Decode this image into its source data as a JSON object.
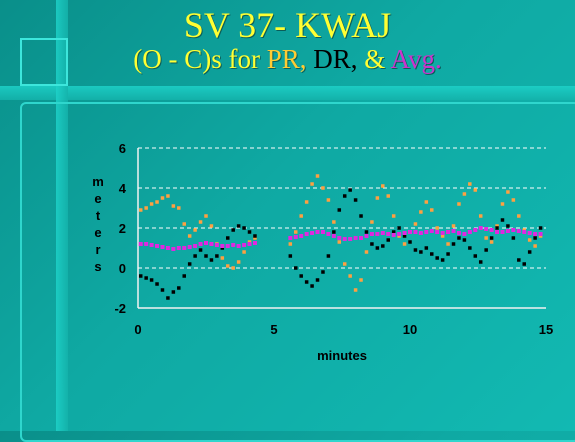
{
  "slide": {
    "title": "SV 37- KWAJ",
    "subtitle_pre": "(O - C)s for",
    "subtitle_pr": "PR,",
    "subtitle_dr": "DR,",
    "subtitle_amp": "&",
    "subtitle_avg": "Avg."
  },
  "chart_data": {
    "type": "scatter",
    "xlabel": "minutes",
    "ylabel": "meters",
    "xlim": [
      0,
      15
    ],
    "ylim": [
      -2,
      6
    ],
    "xticks": [
      0,
      5,
      10,
      15
    ],
    "yticks": [
      -2,
      0,
      2,
      4,
      6
    ],
    "grid": "horizontal dashed",
    "colors": {
      "pr": "#ffa040",
      "dr": "#000000",
      "avg": "#e028e0"
    },
    "series": [
      {
        "key": "pr",
        "x": [
          0.1,
          0.3,
          0.5,
          0.7,
          0.9,
          1.1,
          1.3,
          1.5,
          1.7,
          1.9,
          2.1,
          2.3,
          2.5,
          2.7,
          2.9,
          3.1,
          3.3,
          3.5,
          3.7,
          3.9,
          4.1,
          4.3,
          5.6,
          5.8,
          6.0,
          6.2,
          6.4,
          6.6,
          6.8,
          7.0,
          7.2,
          7.4,
          7.6,
          7.8,
          8.0,
          8.2,
          8.4,
          8.6,
          8.8,
          9.0,
          9.2,
          9.4,
          9.6,
          9.8,
          10.0,
          10.2,
          10.4,
          10.6,
          10.8,
          11.0,
          11.2,
          11.4,
          11.6,
          11.8,
          12.0,
          12.2,
          12.4,
          12.6,
          12.8,
          13.0,
          13.2,
          13.4,
          13.6,
          13.8,
          14.0,
          14.2,
          14.4,
          14.6,
          14.8
        ],
        "y": [
          2.9,
          3.0,
          3.2,
          3.3,
          3.5,
          3.6,
          3.1,
          3.0,
          2.2,
          1.6,
          1.9,
          2.3,
          2.6,
          2.1,
          1.2,
          0.5,
          0.1,
          0.0,
          0.3,
          0.8,
          1.3,
          1.5,
          1.2,
          1.8,
          2.6,
          3.3,
          4.2,
          4.6,
          4.0,
          3.4,
          2.3,
          1.3,
          0.2,
          -0.4,
          -1.1,
          -0.6,
          0.8,
          2.3,
          3.5,
          4.1,
          3.6,
          2.6,
          1.6,
          1.2,
          1.8,
          2.2,
          2.8,
          3.3,
          2.9,
          2.0,
          1.6,
          1.2,
          2.1,
          3.2,
          3.7,
          4.2,
          3.9,
          2.6,
          1.5,
          1.3,
          2.1,
          3.2,
          3.8,
          3.4,
          2.6,
          1.9,
          1.4,
          1.1,
          1.6
        ]
      },
      {
        "key": "dr",
        "x": [
          0.1,
          0.3,
          0.5,
          0.7,
          0.9,
          1.1,
          1.3,
          1.5,
          1.7,
          1.9,
          2.1,
          2.3,
          2.5,
          2.7,
          2.9,
          3.1,
          3.3,
          3.5,
          3.7,
          3.9,
          4.1,
          4.3,
          5.6,
          5.8,
          6.0,
          6.2,
          6.4,
          6.6,
          6.8,
          7.0,
          7.2,
          7.4,
          7.6,
          7.8,
          8.0,
          8.2,
          8.4,
          8.6,
          8.8,
          9.0,
          9.2,
          9.4,
          9.6,
          9.8,
          10.0,
          10.2,
          10.4,
          10.6,
          10.8,
          11.0,
          11.2,
          11.4,
          11.6,
          11.8,
          12.0,
          12.2,
          12.4,
          12.6,
          12.8,
          13.0,
          13.2,
          13.4,
          13.6,
          13.8,
          14.0,
          14.2,
          14.4,
          14.6,
          14.8
        ],
        "y": [
          -0.4,
          -0.5,
          -0.6,
          -0.8,
          -1.1,
          -1.5,
          -1.2,
          -1.0,
          -0.4,
          0.2,
          0.6,
          0.9,
          0.6,
          0.4,
          0.6,
          1.0,
          1.5,
          1.9,
          2.1,
          2.0,
          1.8,
          1.6,
          0.6,
          0.0,
          -0.4,
          -0.7,
          -0.9,
          -0.6,
          -0.2,
          0.6,
          1.8,
          2.9,
          3.6,
          3.9,
          3.4,
          2.6,
          1.8,
          1.2,
          1.0,
          1.1,
          1.4,
          1.8,
          2.0,
          1.6,
          1.3,
          0.9,
          0.8,
          1.0,
          0.7,
          0.5,
          0.4,
          0.7,
          1.2,
          1.5,
          1.4,
          1.0,
          0.6,
          0.3,
          0.9,
          1.5,
          2.0,
          2.4,
          2.1,
          1.5,
          0.4,
          0.2,
          0.8,
          1.5,
          2.0
        ]
      },
      {
        "key": "avg",
        "x": [
          0.1,
          0.3,
          0.5,
          0.7,
          0.9,
          1.1,
          1.3,
          1.5,
          1.7,
          1.9,
          2.1,
          2.3,
          2.5,
          2.7,
          2.9,
          3.1,
          3.3,
          3.5,
          3.7,
          3.9,
          4.1,
          4.3,
          5.6,
          5.8,
          6.0,
          6.2,
          6.4,
          6.6,
          6.8,
          7.0,
          7.2,
          7.4,
          7.6,
          7.8,
          8.0,
          8.2,
          8.4,
          8.6,
          8.8,
          9.0,
          9.2,
          9.4,
          9.6,
          9.8,
          10.0,
          10.2,
          10.4,
          10.6,
          10.8,
          11.0,
          11.2,
          11.4,
          11.6,
          11.8,
          12.0,
          12.2,
          12.4,
          12.6,
          12.8,
          13.0,
          13.2,
          13.4,
          13.6,
          13.8,
          14.0,
          14.2,
          14.4,
          14.6,
          14.8
        ],
        "y": [
          1.2,
          1.2,
          1.15,
          1.1,
          1.05,
          1.0,
          0.95,
          1.0,
          1.0,
          1.05,
          1.1,
          1.2,
          1.25,
          1.2,
          1.15,
          1.1,
          1.1,
          1.15,
          1.1,
          1.15,
          1.2,
          1.25,
          1.5,
          1.55,
          1.6,
          1.7,
          1.75,
          1.8,
          1.8,
          1.7,
          1.6,
          1.5,
          1.45,
          1.45,
          1.5,
          1.5,
          1.6,
          1.7,
          1.7,
          1.75,
          1.7,
          1.65,
          1.7,
          1.75,
          1.8,
          1.8,
          1.75,
          1.8,
          1.85,
          1.8,
          1.75,
          1.8,
          1.85,
          1.75,
          1.7,
          1.8,
          1.9,
          2.0,
          1.95,
          1.9,
          1.8,
          1.8,
          1.85,
          1.9,
          1.85,
          1.8,
          1.75,
          1.7,
          1.7
        ]
      }
    ]
  }
}
